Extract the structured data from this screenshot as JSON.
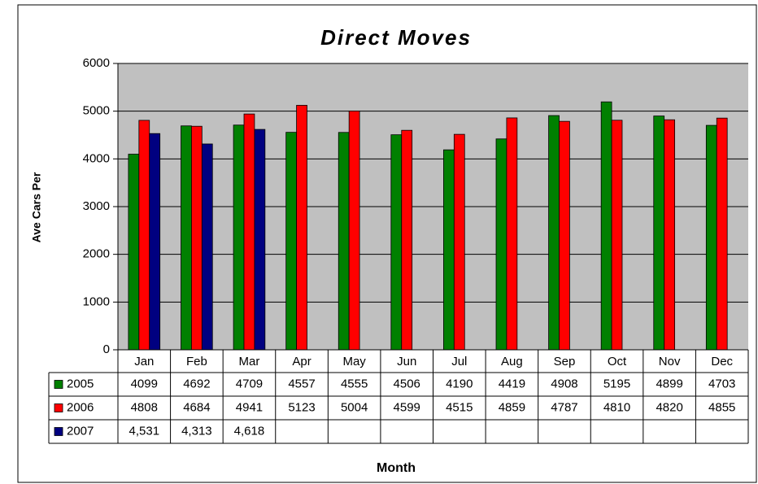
{
  "chart_data": {
    "type": "bar",
    "title": "Direct Moves",
    "x_label": "Month",
    "y_label": "Ave Cars Per",
    "categories": [
      "Jan",
      "Feb",
      "Mar",
      "Apr",
      "May",
      "Jun",
      "Jul",
      "Aug",
      "Sep",
      "Oct",
      "Nov",
      "Dec"
    ],
    "series": [
      {
        "name": "2005",
        "color": "#008000",
        "values": [
          4099,
          4692,
          4709,
          4557,
          4555,
          4506,
          4190,
          4419,
          4908,
          5195,
          4899,
          4703
        ]
      },
      {
        "name": "2006",
        "color": "#ff0000",
        "values": [
          4808,
          4684,
          4941,
          5123,
          5004,
          4599,
          4515,
          4859,
          4787,
          4810,
          4820,
          4855
        ]
      },
      {
        "name": "2007",
        "color": "#000080",
        "values": [
          4531,
          4313,
          4618,
          null,
          null,
          null,
          null,
          null,
          null,
          null,
          null,
          null
        ],
        "value_labels": [
          "4,531",
          "4,313",
          "4,618",
          null,
          null,
          null,
          null,
          null,
          null,
          null,
          null,
          null
        ]
      }
    ],
    "ylim": [
      0,
      6000
    ],
    "yticks": [
      0,
      1000,
      2000,
      3000,
      4000,
      5000,
      6000
    ],
    "grid": true
  }
}
